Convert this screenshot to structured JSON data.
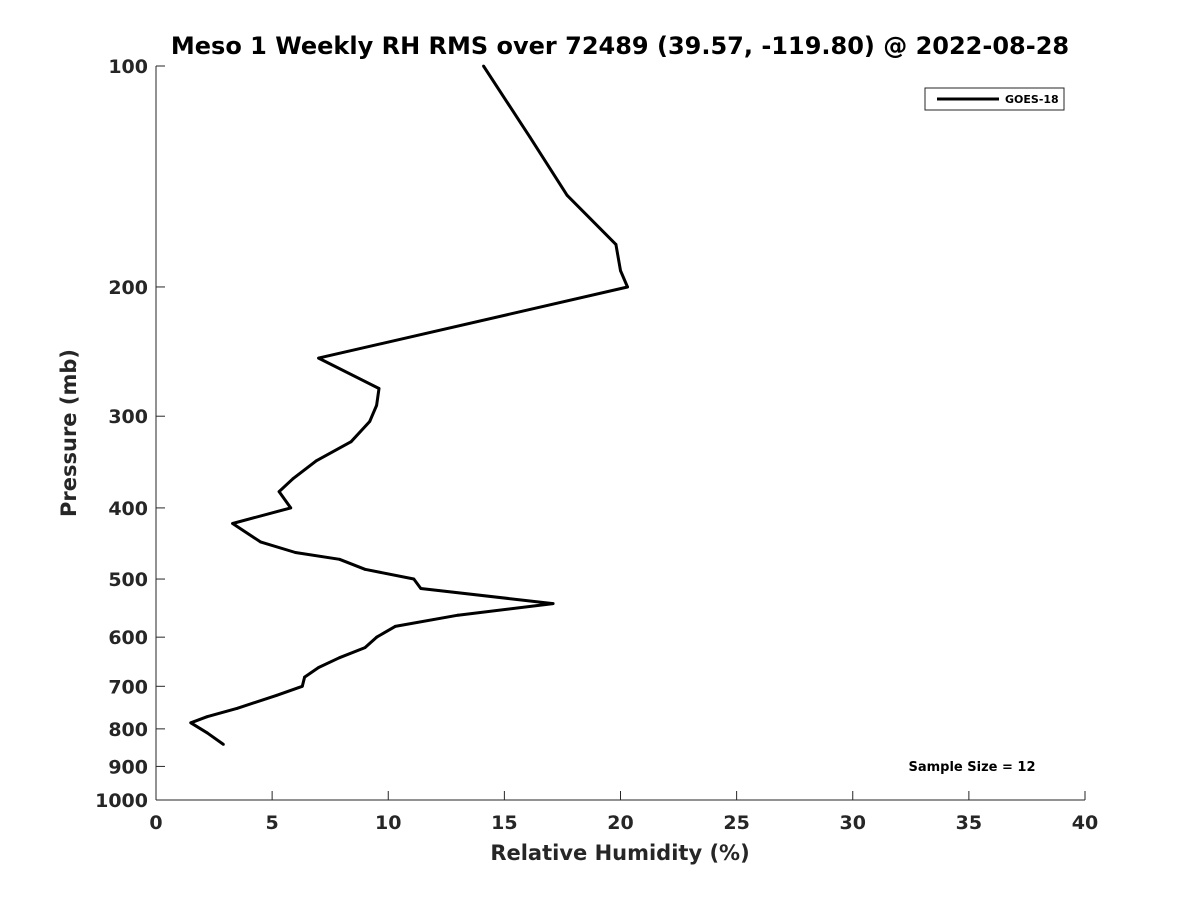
{
  "chart_data": {
    "type": "line",
    "title": "Meso 1 Weekly RH RMS over 72489 (39.57, -119.80) @ 2022-08-28",
    "xlabel": "Relative Humidity (%)",
    "ylabel": "Pressure (mb)",
    "xlim": [
      0,
      40
    ],
    "ylim": [
      100,
      1000
    ],
    "yscale": "log",
    "y_reversed": true,
    "x_ticks": [
      0,
      5,
      10,
      15,
      20,
      25,
      30,
      35,
      40
    ],
    "y_ticks": [
      100,
      200,
      300,
      400,
      500,
      600,
      700,
      800,
      900,
      1000
    ],
    "grid": false,
    "legend_position": "top-right",
    "annotation": "Sample Size = 12",
    "series": [
      {
        "name": "GOES-18",
        "color": "#000000",
        "points": [
          {
            "x": 14.1,
            "y": 100
          },
          {
            "x": 16.1,
            "y": 125
          },
          {
            "x": 17.7,
            "y": 150
          },
          {
            "x": 19.8,
            "y": 175
          },
          {
            "x": 20.0,
            "y": 190
          },
          {
            "x": 20.3,
            "y": 200
          },
          {
            "x": 7.0,
            "y": 250
          },
          {
            "x": 9.6,
            "y": 275
          },
          {
            "x": 9.5,
            "y": 290
          },
          {
            "x": 9.2,
            "y": 305
          },
          {
            "x": 8.4,
            "y": 325
          },
          {
            "x": 6.9,
            "y": 345
          },
          {
            "x": 5.9,
            "y": 365
          },
          {
            "x": 5.3,
            "y": 380
          },
          {
            "x": 5.8,
            "y": 400
          },
          {
            "x": 3.3,
            "y": 420
          },
          {
            "x": 4.5,
            "y": 445
          },
          {
            "x": 6.0,
            "y": 460
          },
          {
            "x": 7.9,
            "y": 470
          },
          {
            "x": 9.0,
            "y": 485
          },
          {
            "x": 11.1,
            "y": 500
          },
          {
            "x": 11.4,
            "y": 515
          },
          {
            "x": 17.1,
            "y": 540
          },
          {
            "x": 13.0,
            "y": 560
          },
          {
            "x": 10.3,
            "y": 580
          },
          {
            "x": 9.5,
            "y": 600
          },
          {
            "x": 9.0,
            "y": 620
          },
          {
            "x": 7.9,
            "y": 640
          },
          {
            "x": 7.0,
            "y": 660
          },
          {
            "x": 6.4,
            "y": 680
          },
          {
            "x": 6.3,
            "y": 700
          },
          {
            "x": 5.2,
            "y": 720
          },
          {
            "x": 3.5,
            "y": 750
          },
          {
            "x": 2.2,
            "y": 770
          },
          {
            "x": 1.5,
            "y": 785
          },
          {
            "x": 2.2,
            "y": 810
          },
          {
            "x": 2.9,
            "y": 840
          }
        ]
      }
    ]
  }
}
